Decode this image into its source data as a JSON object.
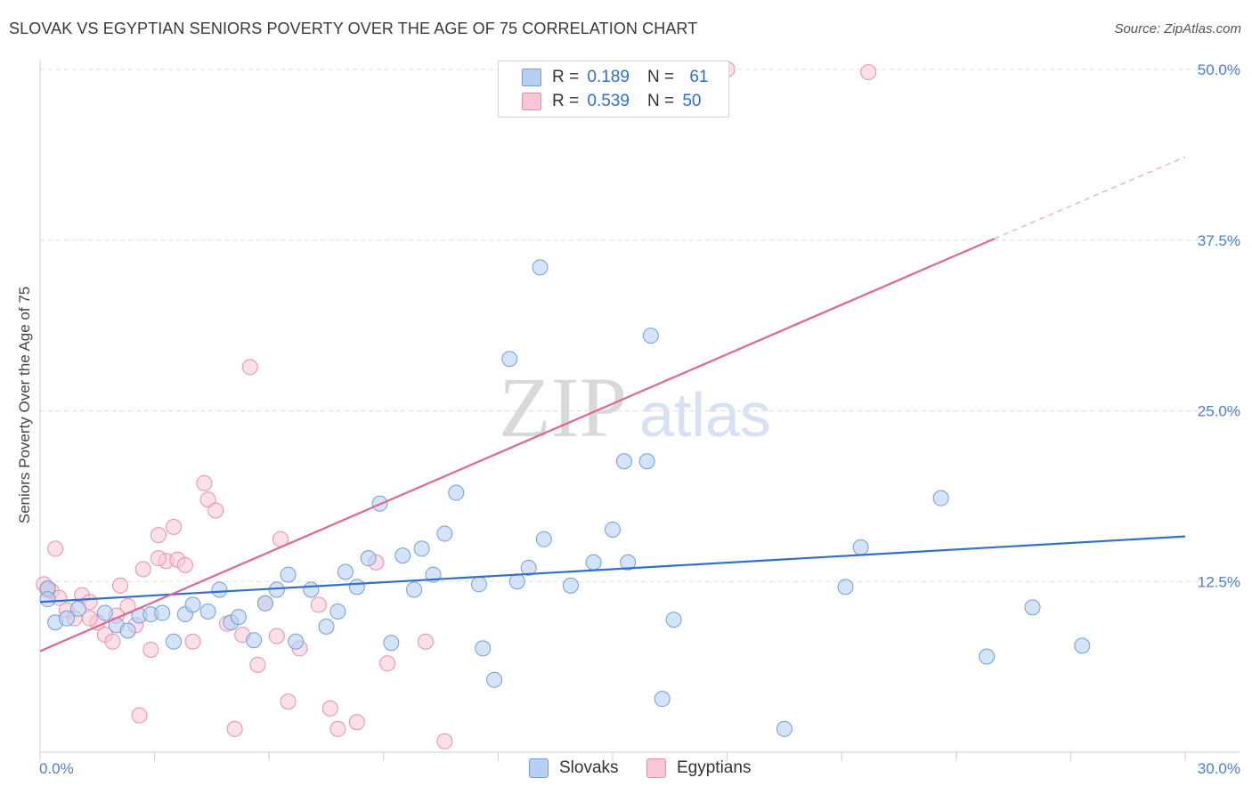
{
  "header": {
    "title": "SLOVAK VS EGYPTIAN SENIORS POVERTY OVER THE AGE OF 75 CORRELATION CHART",
    "source": "Source: ZipAtlas.com"
  },
  "legend": {
    "rows": [
      {
        "r_label": "R =",
        "r_value": "0.189",
        "n_label": "N =",
        "n_value": "61"
      },
      {
        "r_label": "R =",
        "r_value": "0.539",
        "n_label": "N =",
        "n_value": "50"
      }
    ]
  },
  "colors": {
    "slovaks_fill": "#b7d0f2",
    "slovaks_stroke": "#6f9fde",
    "slovaks_line": "#2f6fce",
    "egyptians_fill": "#f8c6d5",
    "egyptians_stroke": "#ea8fab",
    "egyptians_line": "#e0668f",
    "tick_text": "#4a7fd0",
    "grid": "#dddddd"
  },
  "chart_data": {
    "type": "scatter",
    "title": "SLOVAK VS EGYPTIAN SENIORS POVERTY OVER THE AGE OF 75 CORRELATION CHART",
    "xlabel": "",
    "ylabel": "Seniors Poverty Over the Age of 75",
    "xlim": [
      0,
      30
    ],
    "ylim": [
      0,
      50
    ],
    "x_tick_labels": [
      "0.0%",
      "30.0%"
    ],
    "y_ticks": [
      12.5,
      25.0,
      37.5,
      50.0
    ],
    "y_tick_labels": [
      "12.5%",
      "25.0%",
      "37.5%",
      "50.0%"
    ],
    "grid": true,
    "legend_position": "top-center",
    "series": [
      {
        "name": "Slovaks",
        "points": [
          [
            0.2,
            12.0
          ],
          [
            0.4,
            9.5
          ],
          [
            0.7,
            9.8
          ],
          [
            1.0,
            10.5
          ],
          [
            1.7,
            10.2
          ],
          [
            2.0,
            9.3
          ],
          [
            2.3,
            8.9
          ],
          [
            2.6,
            10.0
          ],
          [
            2.9,
            10.1
          ],
          [
            3.2,
            10.2
          ],
          [
            3.5,
            8.1
          ],
          [
            3.8,
            10.1
          ],
          [
            4.0,
            10.8
          ],
          [
            4.4,
            10.3
          ],
          [
            4.7,
            11.9
          ],
          [
            5.0,
            9.5
          ],
          [
            5.2,
            9.9
          ],
          [
            5.6,
            8.2
          ],
          [
            5.9,
            10.9
          ],
          [
            6.2,
            11.9
          ],
          [
            6.5,
            13.0
          ],
          [
            6.7,
            8.1
          ],
          [
            7.1,
            11.9
          ],
          [
            7.5,
            9.2
          ],
          [
            7.8,
            10.3
          ],
          [
            8.0,
            13.2
          ],
          [
            8.3,
            12.1
          ],
          [
            8.6,
            14.2
          ],
          [
            8.9,
            18.2
          ],
          [
            9.2,
            8.0
          ],
          [
            9.5,
            14.4
          ],
          [
            9.8,
            11.9
          ],
          [
            10.0,
            14.9
          ],
          [
            10.3,
            13.0
          ],
          [
            10.6,
            16.0
          ],
          [
            10.9,
            19.0
          ],
          [
            11.5,
            12.3
          ],
          [
            11.6,
            7.6
          ],
          [
            11.9,
            5.3
          ],
          [
            12.3,
            28.8
          ],
          [
            12.5,
            12.5
          ],
          [
            12.8,
            13.5
          ],
          [
            13.1,
            35.5
          ],
          [
            13.2,
            15.6
          ],
          [
            13.9,
            12.2
          ],
          [
            14.5,
            13.9
          ],
          [
            15.0,
            16.3
          ],
          [
            15.3,
            21.3
          ],
          [
            15.4,
            13.9
          ],
          [
            15.9,
            21.3
          ],
          [
            16.0,
            30.5
          ],
          [
            16.3,
            3.9
          ],
          [
            16.6,
            9.7
          ],
          [
            19.5,
            1.7
          ],
          [
            21.1,
            12.1
          ],
          [
            21.5,
            15.0
          ],
          [
            23.6,
            18.6
          ],
          [
            24.8,
            7.0
          ],
          [
            26.0,
            10.6
          ],
          [
            27.3,
            7.8
          ],
          [
            0.2,
            11.2
          ]
        ]
      },
      {
        "name": "Egyptians",
        "points": [
          [
            0.1,
            12.3
          ],
          [
            0.3,
            11.8
          ],
          [
            0.5,
            11.3
          ],
          [
            0.7,
            10.4
          ],
          [
            0.9,
            9.8
          ],
          [
            1.1,
            11.5
          ],
          [
            1.3,
            11.0
          ],
          [
            1.5,
            9.5
          ],
          [
            1.7,
            8.6
          ],
          [
            1.9,
            8.1
          ],
          [
            2.1,
            12.2
          ],
          [
            2.3,
            10.7
          ],
          [
            2.5,
            9.3
          ],
          [
            2.7,
            13.4
          ],
          [
            2.9,
            7.5
          ],
          [
            3.1,
            15.9
          ],
          [
            3.3,
            14.0
          ],
          [
            3.5,
            16.5
          ],
          [
            3.6,
            14.1
          ],
          [
            3.8,
            13.7
          ],
          [
            4.0,
            8.1
          ],
          [
            4.3,
            19.7
          ],
          [
            4.4,
            18.5
          ],
          [
            4.6,
            17.7
          ],
          [
            4.9,
            9.4
          ],
          [
            5.1,
            1.7
          ],
          [
            5.3,
            8.6
          ],
          [
            5.5,
            28.2
          ],
          [
            5.7,
            6.4
          ],
          [
            5.9,
            10.9
          ],
          [
            6.2,
            8.5
          ],
          [
            6.3,
            15.6
          ],
          [
            6.5,
            3.7
          ],
          [
            6.8,
            7.6
          ],
          [
            7.3,
            10.8
          ],
          [
            7.6,
            3.2
          ],
          [
            7.8,
            1.7
          ],
          [
            8.3,
            2.2
          ],
          [
            8.8,
            13.9
          ],
          [
            9.1,
            6.5
          ],
          [
            10.1,
            8.1
          ],
          [
            10.6,
            0.8
          ],
          [
            18.0,
            50.0
          ],
          [
            21.7,
            49.8
          ],
          [
            0.2,
            11.9
          ],
          [
            1.3,
            9.8
          ],
          [
            2.6,
            2.7
          ],
          [
            3.1,
            14.2
          ],
          [
            0.4,
            14.9
          ],
          [
            2.0,
            10.0
          ]
        ]
      }
    ],
    "trend_lines": [
      {
        "series": "Slovaks",
        "x": [
          0,
          30
        ],
        "y": [
          11.0,
          15.8
        ]
      },
      {
        "series": "Egyptians",
        "x": [
          0,
          25
        ],
        "y": [
          7.4,
          37.6
        ],
        "dashed_extension_to": [
          30,
          43.6
        ]
      }
    ]
  },
  "bottom_legend": {
    "items": [
      {
        "label": "Slovaks"
      },
      {
        "label": "Egyptians"
      }
    ]
  },
  "watermark": {
    "part1": "ZIP",
    "part2": "atlas"
  }
}
